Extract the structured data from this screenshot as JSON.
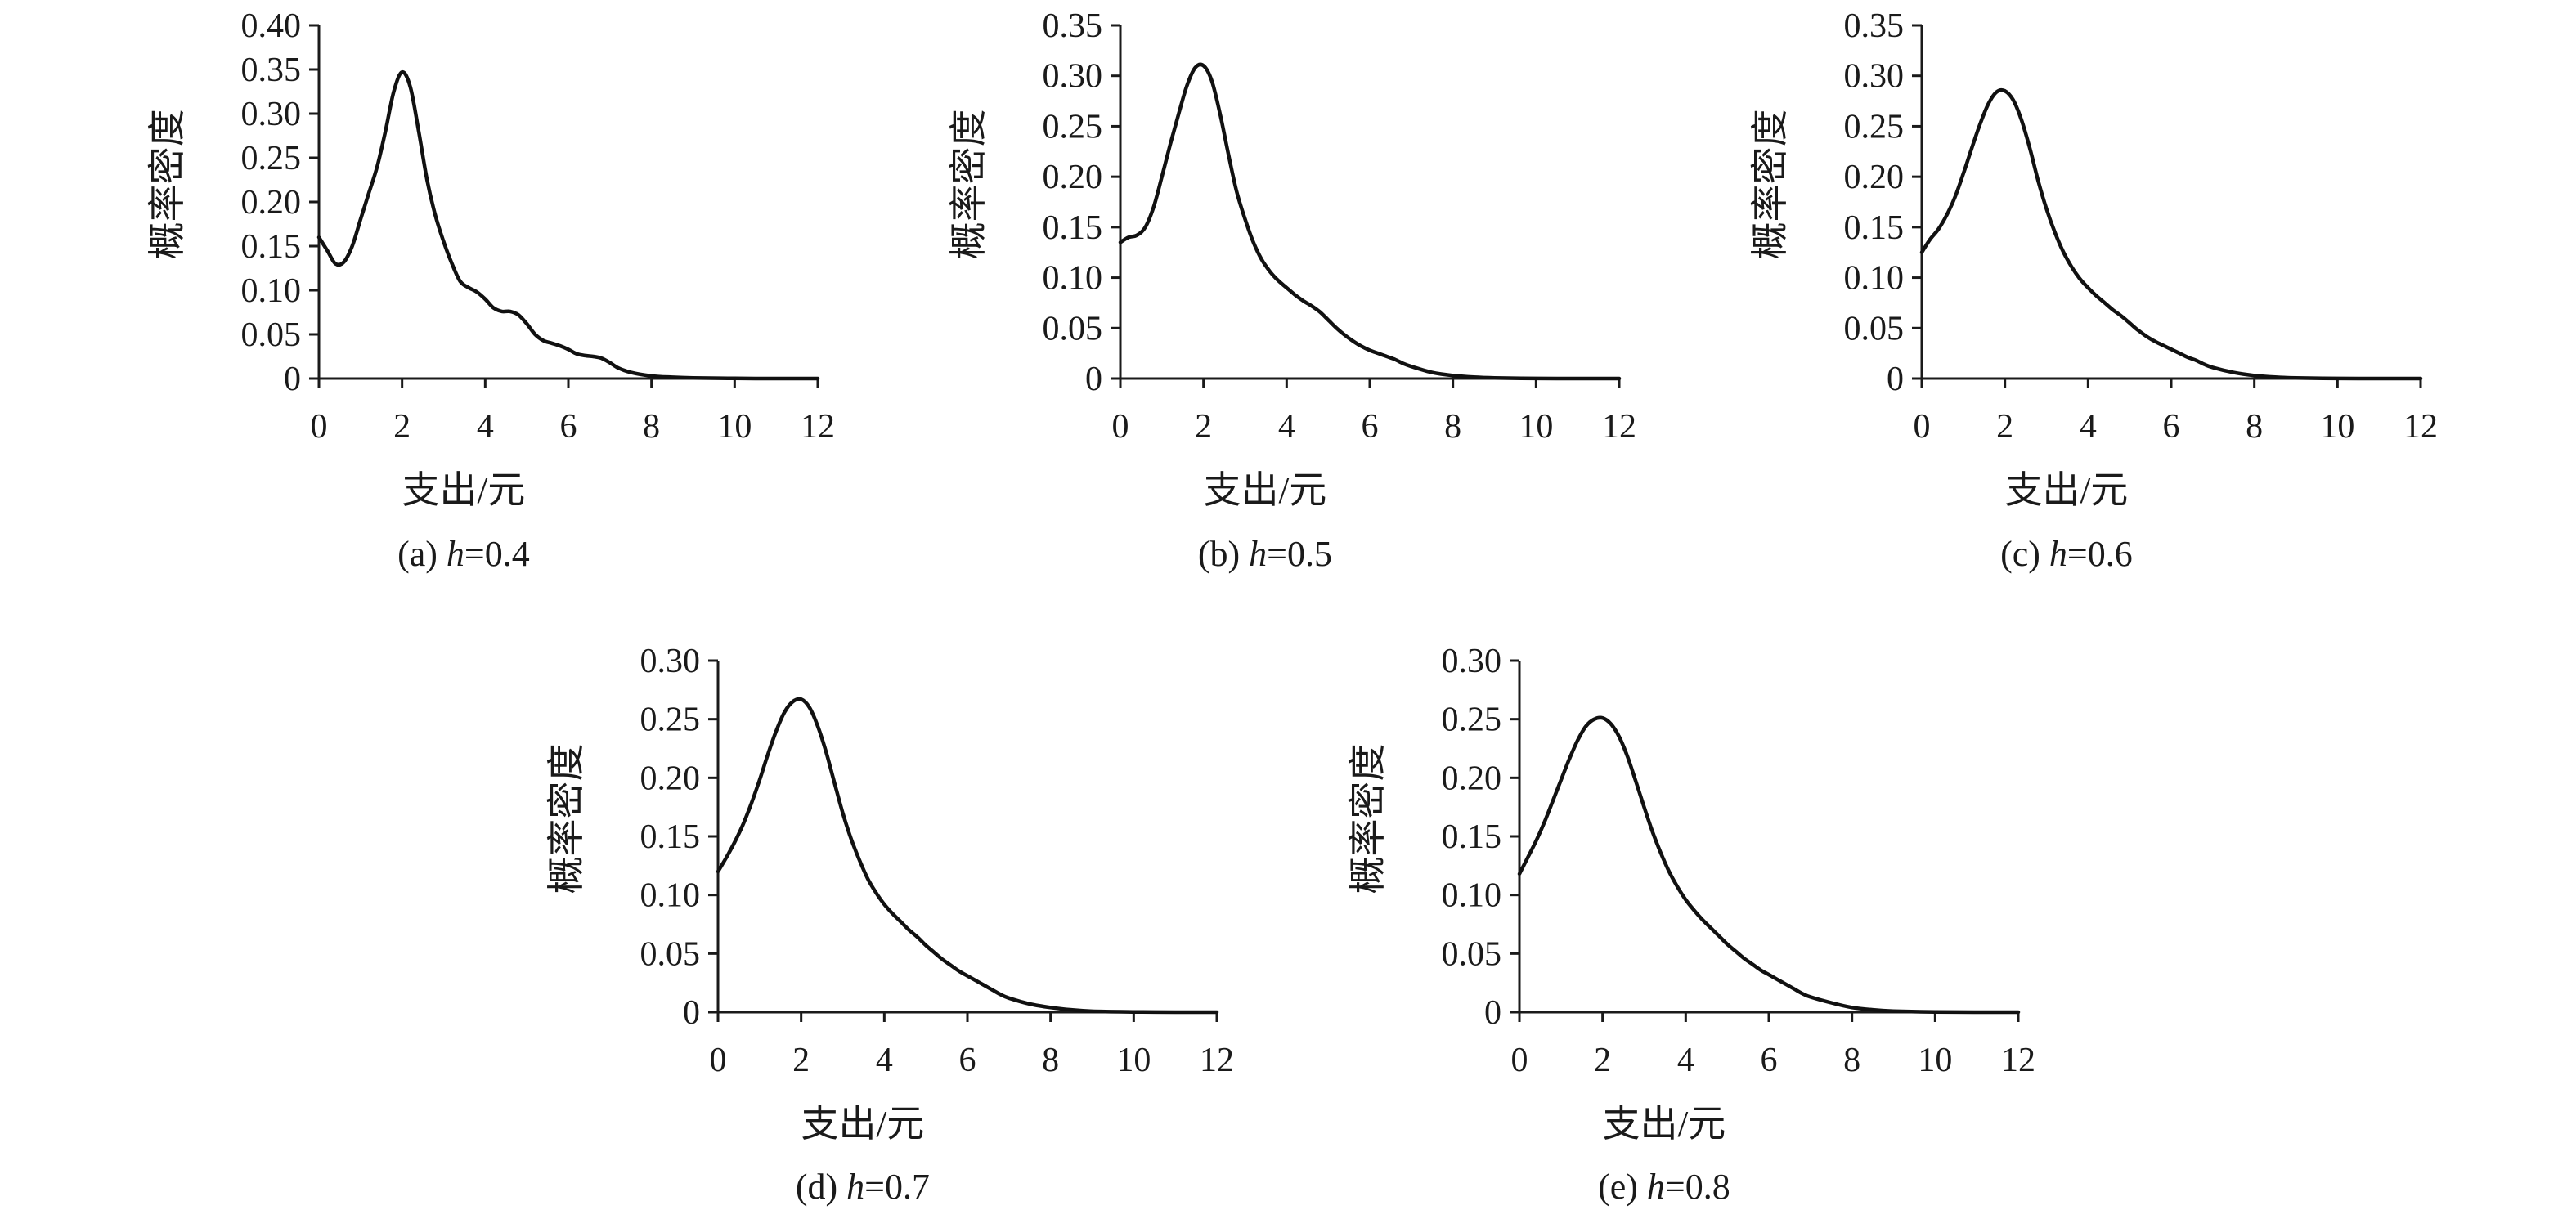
{
  "chart_data": [
    {
      "type": "line",
      "caption": "(a) h=0.4",
      "caption_parts": [
        "(a) ",
        "h",
        "=0.4"
      ],
      "xlabel": "支出/元",
      "ylabel": "概率密度",
      "xlim": [
        0,
        12
      ],
      "ylim": [
        0,
        0.4
      ],
      "xticks": [
        0,
        2,
        4,
        6,
        8,
        10,
        12
      ],
      "xtick_labels": [
        "0",
        "2",
        "4",
        "6",
        "8",
        "10",
        "12"
      ],
      "yticks": [
        0,
        0.05,
        0.1,
        0.15,
        0.2,
        0.25,
        0.3,
        0.35,
        0.4
      ],
      "ytick_labels": [
        "0",
        "0.05",
        "0.10",
        "0.15",
        "0.20",
        "0.25",
        "0.30",
        "0.35",
        "0.40"
      ],
      "grid": false,
      "series": [
        {
          "x": [
            0,
            0.2,
            0.4,
            0.6,
            0.8,
            1.0,
            1.2,
            1.4,
            1.6,
            1.8,
            2.0,
            2.2,
            2.4,
            2.6,
            2.8,
            3.0,
            3.2,
            3.4,
            3.6,
            3.8,
            4.0,
            4.2,
            4.4,
            4.6,
            4.8,
            5.0,
            5.2,
            5.4,
            5.6,
            5.8,
            6.0,
            6.2,
            6.4,
            6.6,
            6.8,
            7.0,
            7.2,
            7.5,
            8.0,
            8.5,
            9.0,
            10.0,
            11.0,
            12.0
          ],
          "y": [
            0.16,
            0.145,
            0.13,
            0.132,
            0.15,
            0.18,
            0.21,
            0.24,
            0.28,
            0.325,
            0.347,
            0.33,
            0.28,
            0.225,
            0.185,
            0.155,
            0.13,
            0.11,
            0.103,
            0.098,
            0.09,
            0.08,
            0.076,
            0.076,
            0.072,
            0.062,
            0.05,
            0.043,
            0.04,
            0.037,
            0.033,
            0.028,
            0.026,
            0.025,
            0.023,
            0.018,
            0.012,
            0.007,
            0.003,
            0.0015,
            0.0007,
            0.0002,
            0.0,
            0.0
          ]
        }
      ]
    },
    {
      "type": "line",
      "caption": "(b) h=0.5",
      "caption_parts": [
        "(b) ",
        "h",
        "=0.5"
      ],
      "xlabel": "支出/元",
      "ylabel": "概率密度",
      "xlim": [
        0,
        12
      ],
      "ylim": [
        0,
        0.35
      ],
      "xticks": [
        0,
        2,
        4,
        6,
        8,
        10,
        12
      ],
      "xtick_labels": [
        "0",
        "2",
        "4",
        "6",
        "8",
        "10",
        "12"
      ],
      "yticks": [
        0,
        0.05,
        0.1,
        0.15,
        0.2,
        0.25,
        0.3,
        0.35
      ],
      "ytick_labels": [
        "0",
        "0.05",
        "0.10",
        "0.15",
        "0.20",
        "0.25",
        "0.30",
        "0.35"
      ],
      "grid": false,
      "series": [
        {
          "x": [
            0,
            0.2,
            0.4,
            0.6,
            0.8,
            1.0,
            1.2,
            1.4,
            1.6,
            1.8,
            2.0,
            2.2,
            2.4,
            2.6,
            2.8,
            3.0,
            3.2,
            3.4,
            3.6,
            3.8,
            4.0,
            4.2,
            4.4,
            4.6,
            4.8,
            5.0,
            5.2,
            5.4,
            5.6,
            5.8,
            6.0,
            6.2,
            6.4,
            6.6,
            6.8,
            7.0,
            7.5,
            8.0,
            8.5,
            9.0,
            10.0,
            11.0,
            12.0
          ],
          "y": [
            0.135,
            0.14,
            0.142,
            0.15,
            0.17,
            0.2,
            0.232,
            0.262,
            0.29,
            0.308,
            0.31,
            0.295,
            0.262,
            0.222,
            0.185,
            0.158,
            0.135,
            0.118,
            0.106,
            0.097,
            0.09,
            0.083,
            0.077,
            0.072,
            0.066,
            0.058,
            0.05,
            0.043,
            0.037,
            0.032,
            0.028,
            0.025,
            0.022,
            0.019,
            0.015,
            0.012,
            0.006,
            0.003,
            0.0014,
            0.0006,
            0.0001,
            0.0,
            0.0
          ]
        }
      ]
    },
    {
      "type": "line",
      "caption": "(c) h=0.6",
      "caption_parts": [
        "(c) ",
        "h",
        "=0.6"
      ],
      "xlabel": "支出/元",
      "ylabel": "概率密度",
      "xlim": [
        0,
        12
      ],
      "ylim": [
        0,
        0.35
      ],
      "xticks": [
        0,
        2,
        4,
        6,
        8,
        10,
        12
      ],
      "xtick_labels": [
        "0",
        "2",
        "4",
        "6",
        "8",
        "10",
        "12"
      ],
      "yticks": [
        0,
        0.05,
        0.1,
        0.15,
        0.2,
        0.25,
        0.3,
        0.35
      ],
      "ytick_labels": [
        "0",
        "0.05",
        "0.10",
        "0.15",
        "0.20",
        "0.25",
        "0.30",
        "0.35"
      ],
      "grid": false,
      "series": [
        {
          "x": [
            0,
            0.2,
            0.4,
            0.6,
            0.8,
            1.0,
            1.2,
            1.4,
            1.6,
            1.8,
            2.0,
            2.2,
            2.4,
            2.6,
            2.8,
            3.0,
            3.2,
            3.4,
            3.6,
            3.8,
            4.0,
            4.2,
            4.4,
            4.6,
            4.8,
            5.0,
            5.2,
            5.4,
            5.6,
            5.8,
            6.0,
            6.2,
            6.4,
            6.6,
            6.8,
            7.0,
            7.5,
            8.0,
            8.5,
            9.0,
            10.0,
            11.0,
            12.0
          ],
          "y": [
            0.125,
            0.138,
            0.148,
            0.162,
            0.18,
            0.203,
            0.228,
            0.252,
            0.272,
            0.284,
            0.285,
            0.276,
            0.256,
            0.228,
            0.196,
            0.168,
            0.145,
            0.126,
            0.111,
            0.099,
            0.09,
            0.082,
            0.075,
            0.068,
            0.062,
            0.055,
            0.048,
            0.042,
            0.037,
            0.033,
            0.029,
            0.025,
            0.021,
            0.018,
            0.014,
            0.011,
            0.006,
            0.003,
            0.0014,
            0.0006,
            0.0001,
            0.0,
            0.0
          ]
        }
      ]
    },
    {
      "type": "line",
      "caption": "(d) h=0.7",
      "caption_parts": [
        "(d) ",
        "h",
        "=0.7"
      ],
      "xlabel": "支出/元",
      "ylabel": "概率密度",
      "xlim": [
        0,
        12
      ],
      "ylim": [
        0,
        0.3
      ],
      "xticks": [
        0,
        2,
        4,
        6,
        8,
        10,
        12
      ],
      "xtick_labels": [
        "0",
        "2",
        "4",
        "6",
        "8",
        "10",
        "12"
      ],
      "yticks": [
        0,
        0.05,
        0.1,
        0.15,
        0.2,
        0.25,
        0.3
      ],
      "ytick_labels": [
        "0",
        "0.05",
        "0.10",
        "0.15",
        "0.20",
        "0.25",
        "0.30"
      ],
      "grid": false,
      "series": [
        {
          "x": [
            0,
            0.2,
            0.4,
            0.6,
            0.8,
            1.0,
            1.2,
            1.4,
            1.6,
            1.8,
            2.0,
            2.2,
            2.4,
            2.6,
            2.8,
            3.0,
            3.2,
            3.4,
            3.6,
            3.8,
            4.0,
            4.2,
            4.4,
            4.6,
            4.8,
            5.0,
            5.2,
            5.4,
            5.6,
            5.8,
            6.0,
            6.2,
            6.4,
            6.6,
            6.8,
            7.0,
            7.5,
            8.0,
            8.5,
            9.0,
            10.0,
            11.0,
            12.0
          ],
          "y": [
            0.12,
            0.132,
            0.145,
            0.16,
            0.178,
            0.198,
            0.22,
            0.24,
            0.256,
            0.265,
            0.267,
            0.26,
            0.244,
            0.222,
            0.196,
            0.17,
            0.148,
            0.13,
            0.114,
            0.102,
            0.092,
            0.084,
            0.077,
            0.07,
            0.064,
            0.057,
            0.051,
            0.045,
            0.04,
            0.035,
            0.031,
            0.027,
            0.023,
            0.019,
            0.015,
            0.012,
            0.007,
            0.004,
            0.002,
            0.0008,
            0.0002,
            0.0,
            0.0
          ]
        }
      ]
    },
    {
      "type": "line",
      "caption": "(e) h=0.8",
      "caption_parts": [
        "(e) ",
        "h",
        "=0.8"
      ],
      "xlabel": "支出/元",
      "ylabel": "概率密度",
      "xlim": [
        0,
        12
      ],
      "ylim": [
        0,
        0.3
      ],
      "xticks": [
        0,
        2,
        4,
        6,
        8,
        10,
        12
      ],
      "xtick_labels": [
        "0",
        "2",
        "4",
        "6",
        "8",
        "10",
        "12"
      ],
      "yticks": [
        0,
        0.05,
        0.1,
        0.15,
        0.2,
        0.25,
        0.3
      ],
      "ytick_labels": [
        "0",
        "0.05",
        "0.10",
        "0.15",
        "0.20",
        "0.25",
        "0.30"
      ],
      "grid": false,
      "series": [
        {
          "x": [
            0,
            0.2,
            0.4,
            0.6,
            0.8,
            1.0,
            1.2,
            1.4,
            1.6,
            1.8,
            2.0,
            2.2,
            2.4,
            2.6,
            2.8,
            3.0,
            3.2,
            3.4,
            3.6,
            3.8,
            4.0,
            4.2,
            4.4,
            4.6,
            4.8,
            5.0,
            5.2,
            5.4,
            5.6,
            5.8,
            6.0,
            6.2,
            6.4,
            6.6,
            6.8,
            7.0,
            7.5,
            8.0,
            8.5,
            9.0,
            10.0,
            11.0,
            12.0
          ],
          "y": [
            0.118,
            0.132,
            0.146,
            0.162,
            0.18,
            0.198,
            0.216,
            0.232,
            0.244,
            0.25,
            0.251,
            0.246,
            0.235,
            0.218,
            0.197,
            0.175,
            0.154,
            0.136,
            0.12,
            0.107,
            0.096,
            0.087,
            0.079,
            0.072,
            0.065,
            0.058,
            0.052,
            0.046,
            0.041,
            0.036,
            0.032,
            0.028,
            0.024,
            0.02,
            0.016,
            0.013,
            0.008,
            0.004,
            0.002,
            0.0009,
            0.0002,
            0.0,
            0.0
          ]
        }
      ]
    }
  ]
}
